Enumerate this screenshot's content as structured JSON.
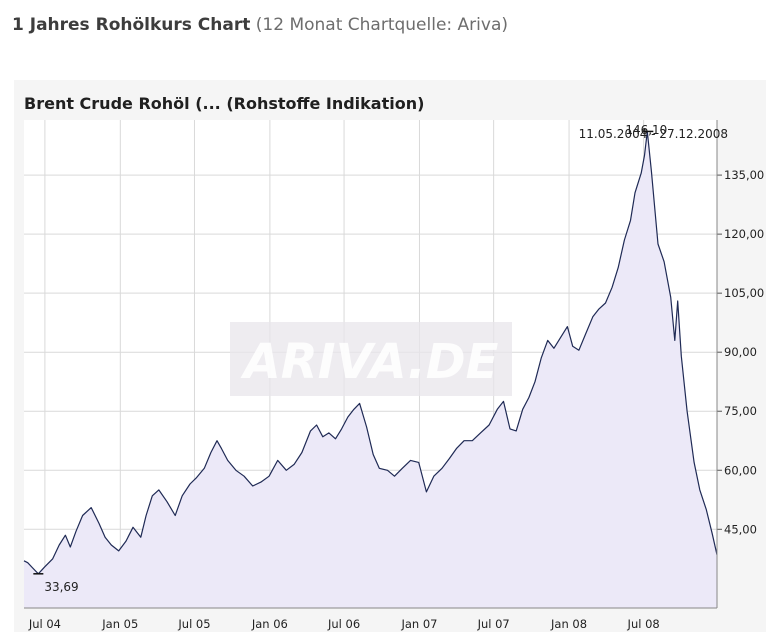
{
  "header": {
    "title": "1 Jahres Rohölkurs Chart",
    "source": "(12 Monat Chartquelle: Ariva)"
  },
  "chart_data": {
    "type": "area",
    "title": "Brent Crude Rohöl (... (Rohstoffe Indikation)",
    "watermark": "ARIVA.DE",
    "xlabel": "",
    "ylabel": "",
    "x_range": [
      "2004-05-11",
      "2008-12-27"
    ],
    "ylim": [
      25,
      149
    ],
    "y_ticks": [
      45,
      60,
      75,
      90,
      105,
      120,
      135
    ],
    "y_tick_labels": [
      "45,00",
      "60,00",
      "75,00",
      "90,00",
      "105,00",
      "120,00",
      "135,00"
    ],
    "x_ticks": [
      "2004-07-01",
      "2005-01-01",
      "2005-07-01",
      "2006-01-01",
      "2006-07-01",
      "2007-01-01",
      "2007-07-01",
      "2008-01-01",
      "2008-07-01"
    ],
    "x_tick_labels": [
      "Jul 04",
      "Jan 05",
      "Jul 05",
      "Jan 06",
      "Jul 06",
      "Jan 07",
      "Jul 07",
      "Jan 08",
      "Jul 08"
    ],
    "grid": true,
    "line_color": "#1f2a55",
    "fill_color": "#ece9f8",
    "annotations": {
      "date_range": "11.05.2004 - 27.12.2008",
      "max_label": "146,10",
      "min_label": "33,69"
    },
    "series": [
      {
        "x": [
          "2004-05-11",
          "2004-05-20",
          "2004-06-01",
          "2004-06-15",
          "2004-07-01",
          "2004-07-20",
          "2004-08-05",
          "2004-08-20",
          "2004-09-01",
          "2004-09-15",
          "2004-10-01",
          "2004-10-22",
          "2004-11-10",
          "2004-11-25",
          "2004-12-10",
          "2004-12-28",
          "2005-01-15",
          "2005-02-01",
          "2005-02-20",
          "2005-03-05",
          "2005-03-20",
          "2005-04-05",
          "2005-04-25",
          "2005-05-15",
          "2005-06-01",
          "2005-06-20",
          "2005-07-05",
          "2005-07-25",
          "2005-08-10",
          "2005-08-25",
          "2005-09-05",
          "2005-09-20",
          "2005-10-10",
          "2005-10-30",
          "2005-11-20",
          "2005-12-10",
          "2005-12-30",
          "2006-01-20",
          "2006-02-10",
          "2006-03-01",
          "2006-03-20",
          "2006-04-10",
          "2006-04-25",
          "2006-05-10",
          "2006-05-25",
          "2006-06-10",
          "2006-06-25",
          "2006-07-10",
          "2006-07-25",
          "2006-08-08",
          "2006-08-25",
          "2006-09-10",
          "2006-09-25",
          "2006-10-15",
          "2006-11-01",
          "2006-11-20",
          "2006-12-10",
          "2006-12-30",
          "2007-01-18",
          "2007-02-05",
          "2007-02-25",
          "2007-03-15",
          "2007-04-01",
          "2007-04-20",
          "2007-05-10",
          "2007-05-30",
          "2007-06-20",
          "2007-07-10",
          "2007-07-25",
          "2007-08-10",
          "2007-08-25",
          "2007-09-10",
          "2007-09-25",
          "2007-10-10",
          "2007-10-25",
          "2007-11-10",
          "2007-11-25",
          "2007-12-10",
          "2007-12-28",
          "2008-01-10",
          "2008-01-25",
          "2008-02-10",
          "2008-02-28",
          "2008-03-14",
          "2008-03-30",
          "2008-04-15",
          "2008-04-30",
          "2008-05-15",
          "2008-05-30",
          "2008-06-10",
          "2008-06-25",
          "2008-07-03",
          "2008-07-10",
          "2008-07-20",
          "2008-08-05",
          "2008-08-20",
          "2008-09-05",
          "2008-09-15",
          "2008-09-22",
          "2008-10-01",
          "2008-10-15",
          "2008-11-01",
          "2008-11-15",
          "2008-12-01",
          "2008-12-15",
          "2008-12-27"
        ],
        "values": [
          37.0,
          36.5,
          35.2,
          33.69,
          35.5,
          37.5,
          41.0,
          43.5,
          40.5,
          44.5,
          48.5,
          50.5,
          46.5,
          43.0,
          41.0,
          39.5,
          42.0,
          45.5,
          43.0,
          48.5,
          53.5,
          55.0,
          52.0,
          48.5,
          53.5,
          56.5,
          58.0,
          60.5,
          64.5,
          67.5,
          65.5,
          62.5,
          60.0,
          58.5,
          56.0,
          57.0,
          58.5,
          62.5,
          60.0,
          61.5,
          64.5,
          70.0,
          71.5,
          68.5,
          69.5,
          68.0,
          70.5,
          73.5,
          75.5,
          77.0,
          71.0,
          64.0,
          60.5,
          60.0,
          58.5,
          60.5,
          62.5,
          62.0,
          54.5,
          58.5,
          60.5,
          63.0,
          65.5,
          67.5,
          67.5,
          69.5,
          71.5,
          75.5,
          77.5,
          70.5,
          70.0,
          75.5,
          78.5,
          82.5,
          88.5,
          93.0,
          91.0,
          93.5,
          96.5,
          91.5,
          90.5,
          94.5,
          99.0,
          101.0,
          102.5,
          106.5,
          111.5,
          118.5,
          123.5,
          130.5,
          135.5,
          140.0,
          146.1,
          136.0,
          117.5,
          113.0,
          104.0,
          93.0,
          103.0,
          89.0,
          75.0,
          62.0,
          55.0,
          50.0,
          44.0,
          38.5
        ]
      }
    ]
  }
}
